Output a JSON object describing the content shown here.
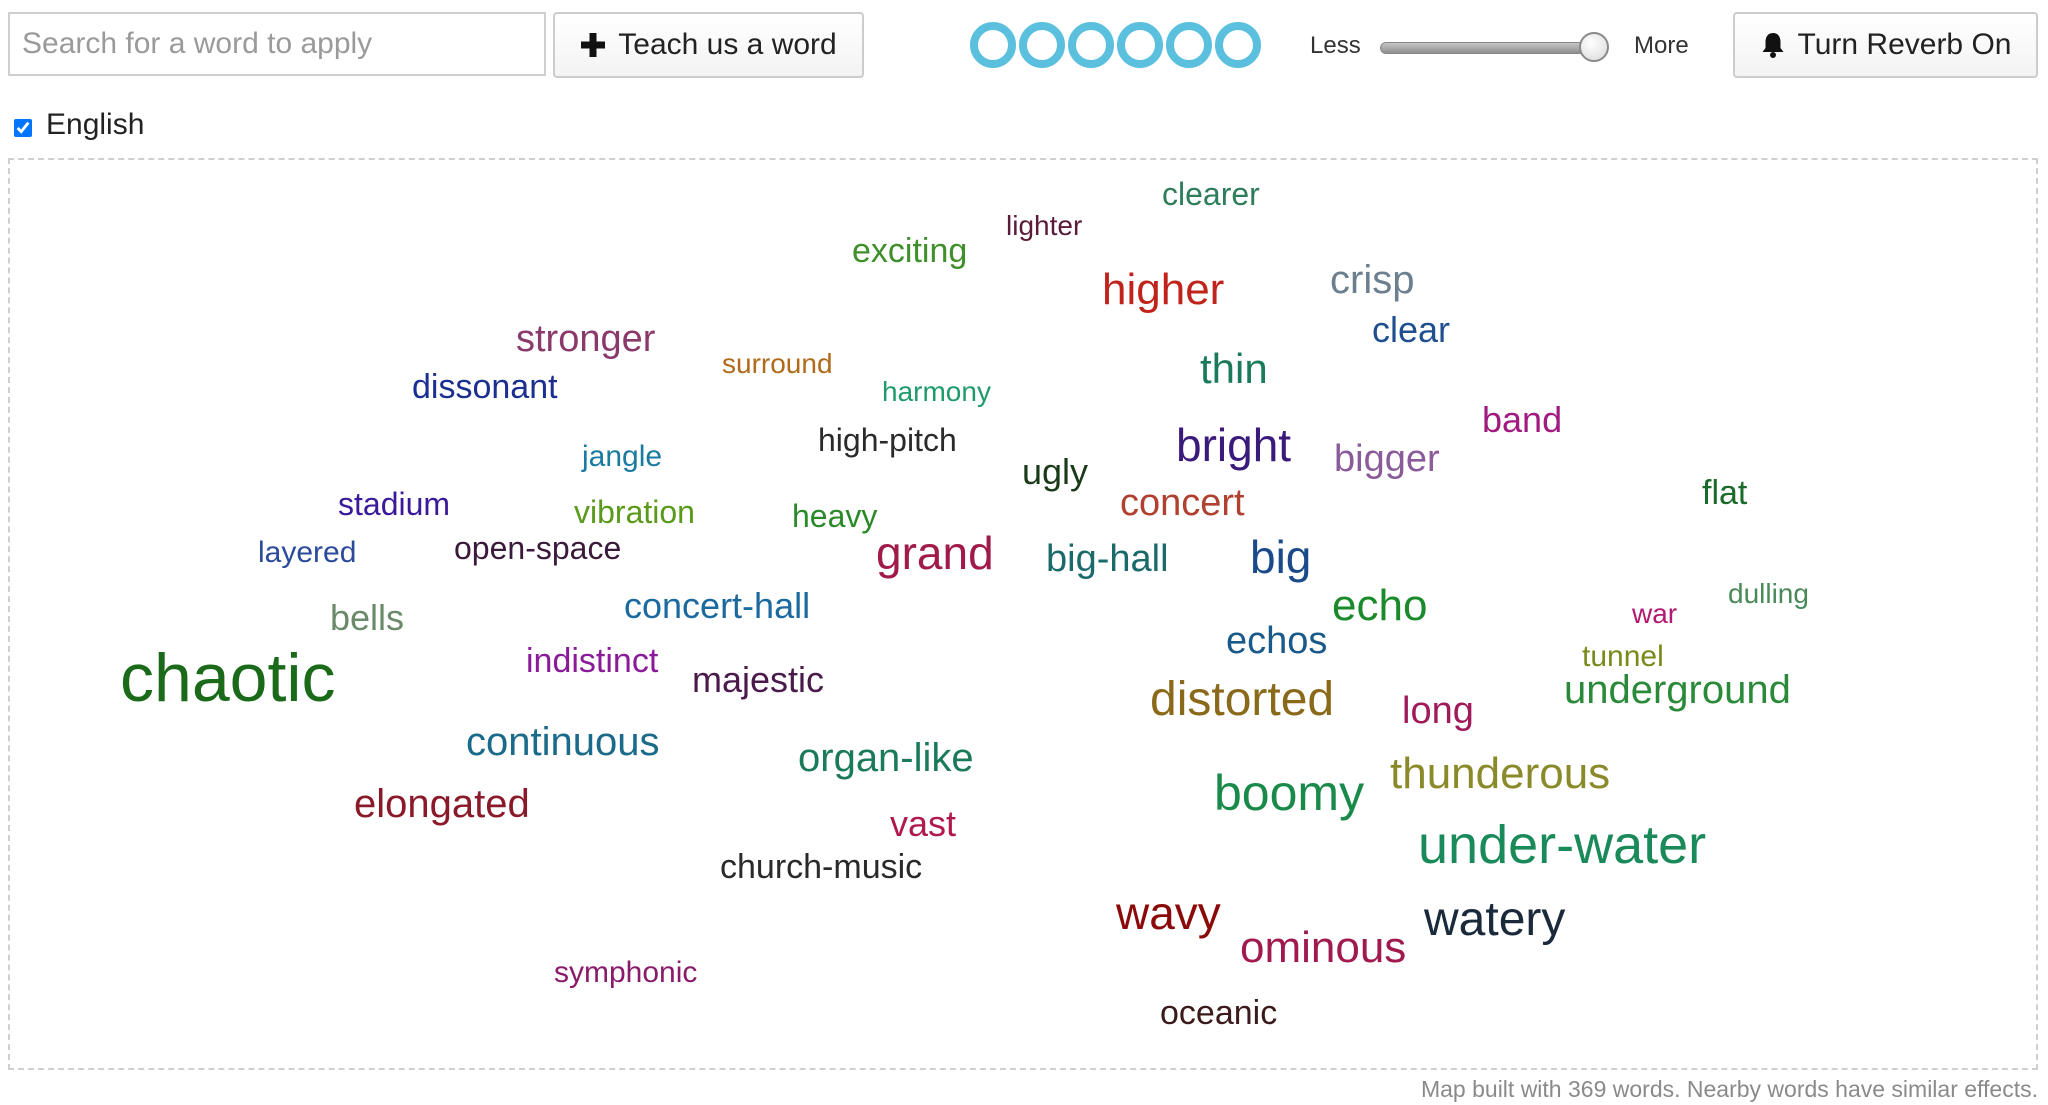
{
  "search": {
    "placeholder": "Search for a word to apply",
    "value": ""
  },
  "toolbar": {
    "teach_label": "Teach us a word",
    "teach_icon": "plus-icon",
    "reverb_label": "Turn Reverb On",
    "reverb_icon": "bell-icon",
    "ring_count": 6,
    "ring_color": "#5bc0de"
  },
  "intensity": {
    "less_label": "Less",
    "more_label": "More",
    "level": 0.95
  },
  "language": {
    "label": "English",
    "checked": true
  },
  "map": {
    "words": [
      {
        "text": "clearer",
        "color": "#2e7d5b"
      },
      {
        "text": "lighter",
        "color": "#5a1a3a"
      },
      {
        "text": "exciting",
        "color": "#3f8f2a"
      },
      {
        "text": "higher",
        "color": "#c0231c"
      },
      {
        "text": "crisp",
        "color": "#6b7f8f"
      },
      {
        "text": "clear",
        "color": "#1f4f8f"
      },
      {
        "text": "stronger",
        "color": "#8a3a6a"
      },
      {
        "text": "surround",
        "color": "#b06a1a"
      },
      {
        "text": "dissonant",
        "color": "#1a2f8f"
      },
      {
        "text": "harmony",
        "color": "#1f9a6a"
      },
      {
        "text": "thin",
        "color": "#1a7a5a"
      },
      {
        "text": "band",
        "color": "#a01a80"
      },
      {
        "text": "jangle",
        "color": "#1a7aa0"
      },
      {
        "text": "high-pitch",
        "color": "#2a2a2a"
      },
      {
        "text": "bright",
        "color": "#3a1a7a"
      },
      {
        "text": "bigger",
        "color": "#8a5a9a"
      },
      {
        "text": "ugly",
        "color": "#1a3a1a"
      },
      {
        "text": "flat",
        "color": "#1a6a2a"
      },
      {
        "text": "stadium",
        "color": "#3a1a9a"
      },
      {
        "text": "vibration",
        "color": "#5a9a1a"
      },
      {
        "text": "heavy",
        "color": "#2a8a2a"
      },
      {
        "text": "concert",
        "color": "#b04030"
      },
      {
        "text": "layered",
        "color": "#2a4a9a"
      },
      {
        "text": "open-space",
        "color": "#3a1a3a"
      },
      {
        "text": "grand",
        "color": "#a01a4a"
      },
      {
        "text": "big-hall",
        "color": "#1a6a6a"
      },
      {
        "text": "big",
        "color": "#1a4a8a"
      },
      {
        "text": "dulling",
        "color": "#4a8a5a"
      },
      {
        "text": "bells",
        "color": "#6a8a6a"
      },
      {
        "text": "concert-hall",
        "color": "#1a6aa0"
      },
      {
        "text": "echo",
        "color": "#1a8a2a"
      },
      {
        "text": "war",
        "color": "#b01a70"
      },
      {
        "text": "echos",
        "color": "#1a5a8a"
      },
      {
        "text": "tunnel",
        "color": "#7a8a1a"
      },
      {
        "text": "chaotic",
        "color": "#1a6a1a"
      },
      {
        "text": "indistinct",
        "color": "#8a1a9a"
      },
      {
        "text": "majestic",
        "color": "#4a1a4a"
      },
      {
        "text": "distorted",
        "color": "#8a6a1a"
      },
      {
        "text": "long",
        "color": "#a01a5a"
      },
      {
        "text": "underground",
        "color": "#2a8a3a"
      },
      {
        "text": "continuous",
        "color": "#1a6a8a"
      },
      {
        "text": "organ-like",
        "color": "#1a7a5a"
      },
      {
        "text": "thunderous",
        "color": "#8a8a2a"
      },
      {
        "text": "boomy",
        "color": "#1a8a4a"
      },
      {
        "text": "elongated",
        "color": "#8a1a2a"
      },
      {
        "text": "vast",
        "color": "#b01a4a"
      },
      {
        "text": "under-water",
        "color": "#1a8a5a"
      },
      {
        "text": "church-music",
        "color": "#2a2a2a"
      },
      {
        "text": "wavy",
        "color": "#8a0a0a"
      },
      {
        "text": "watery",
        "color": "#1a2a3a"
      },
      {
        "text": "ominous",
        "color": "#a01a50"
      },
      {
        "text": "symphonic",
        "color": "#8a1a6a"
      },
      {
        "text": "oceanic",
        "color": "#3a1a1a"
      }
    ]
  },
  "footer": {
    "note": "Map built with 369 words. Nearby words have similar effects."
  }
}
